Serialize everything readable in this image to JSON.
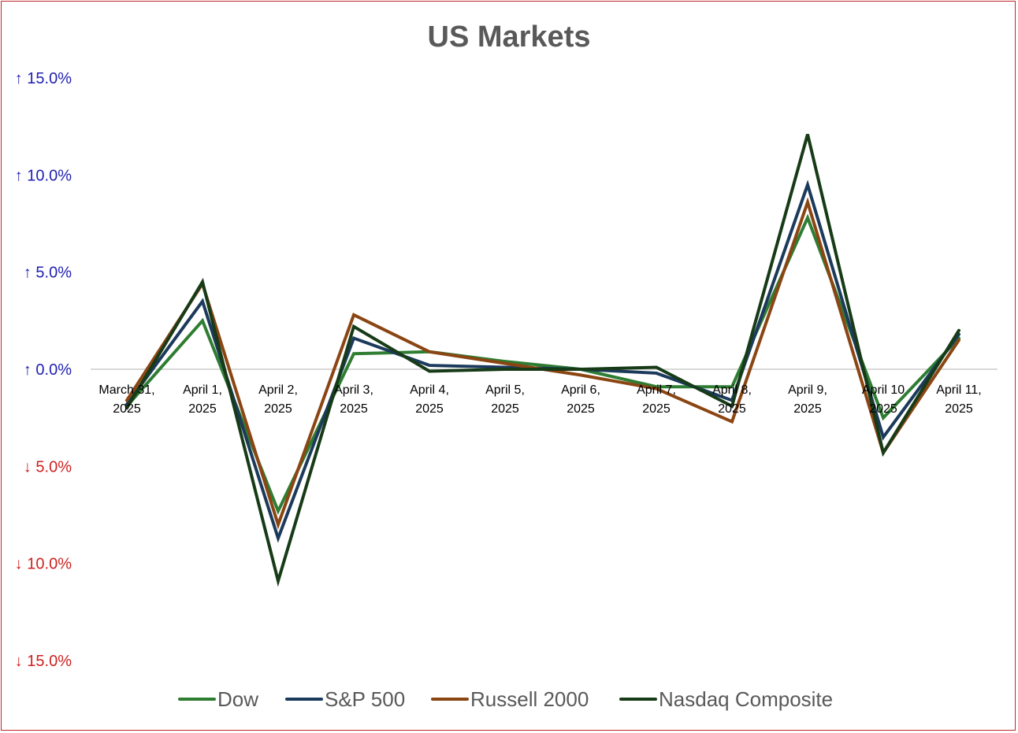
{
  "chart_data": {
    "type": "line",
    "title": "US Markets",
    "xlabel": "",
    "ylabel": "",
    "ylim": [
      -15,
      15
    ],
    "grid": false,
    "legend_position": "bottom",
    "categories": [
      [
        "March 31,",
        "2025"
      ],
      [
        "April 1,",
        "2025"
      ],
      [
        "April 2,",
        "2025"
      ],
      [
        "April 3,",
        "2025"
      ],
      [
        "April 4,",
        "2025"
      ],
      [
        "April 5,",
        "2025"
      ],
      [
        "April 6,",
        "2025"
      ],
      [
        "April 7,",
        "2025"
      ],
      [
        "April 8,",
        "2025"
      ],
      [
        "April 9,",
        "2025"
      ],
      [
        "April 10",
        "2025"
      ],
      [
        "April 11,",
        "2025"
      ]
    ],
    "yticks": [
      {
        "value": 15,
        "label": "↑ 15.0%",
        "color": "#1f1fb4"
      },
      {
        "value": 10,
        "label": "↑ 10.0%",
        "color": "#1f1fb4"
      },
      {
        "value": 5,
        "label": "↑ 5.0%",
        "color": "#1f1fb4"
      },
      {
        "value": 0,
        "label": "↑ 0.0%",
        "color": "#1f1fb4"
      },
      {
        "value": -5,
        "label": "↓ 5.0%",
        "color": "#d02020"
      },
      {
        "value": -10,
        "label": "↓ 10.0%",
        "color": "#d02020"
      },
      {
        "value": -15,
        "label": "↓ 15.0%",
        "color": "#d02020"
      }
    ],
    "series": [
      {
        "name": "Dow",
        "color": "#2e7d32",
        "values": [
          -1.9,
          2.5,
          -7.3,
          0.8,
          0.9,
          0.4,
          0.0,
          -0.9,
          -0.9,
          7.8,
          -2.5,
          1.6
        ]
      },
      {
        "name": "S&P 500",
        "color": "#1b3a5c",
        "values": [
          -1.8,
          3.5,
          -8.7,
          1.6,
          0.2,
          0.1,
          0.0,
          -0.2,
          -1.6,
          9.5,
          -3.5,
          1.8
        ]
      },
      {
        "name": "Russell 2000",
        "color": "#8b4513",
        "values": [
          -1.6,
          4.4,
          -8.0,
          2.8,
          0.9,
          0.3,
          -0.3,
          -1.0,
          -2.7,
          8.6,
          -4.3,
          1.5
        ]
      },
      {
        "name": "Nasdaq Composite",
        "color": "#173b17",
        "values": [
          -2.0,
          4.5,
          -10.9,
          2.2,
          -0.1,
          0.0,
          0.0,
          0.1,
          -1.9,
          12.1,
          -4.3,
          2.0
        ]
      }
    ]
  }
}
